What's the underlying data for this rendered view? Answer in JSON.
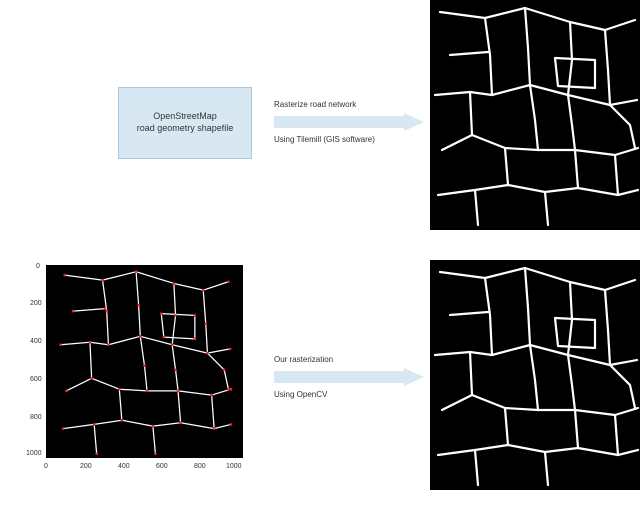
{
  "row1": {
    "box": {
      "line1": "OpenStreetMap",
      "line2": "road geometry shapefile"
    },
    "arrow": {
      "top_label": "Rasterize road network",
      "bottom_label": "Using Tilemill (GIS software)"
    },
    "arrow_color": "#d8e8f3",
    "road_stroke": "#ffffff",
    "road_stroke_width": 2.2,
    "road_bg": "#000000"
  },
  "row2": {
    "arrow": {
      "top_label": "Our rasterization",
      "bottom_label": "Using OpenCV"
    },
    "arrow_color": "#d8e8f3",
    "road_stroke": "#ffffff",
    "road_stroke_width": 2.2,
    "road_bg": "#000000",
    "plot": {
      "x_ticks": [
        "0",
        "200",
        "400",
        "600",
        "800",
        "1000"
      ],
      "y_ticks": [
        "0",
        "200",
        "400",
        "600",
        "800",
        "1000"
      ],
      "line_color": "#ffffff",
      "line_width": 1.5,
      "point_color": "#ff2020",
      "point_radius": 1.6,
      "bg": "#000000"
    }
  },
  "roads": {
    "paths": [
      "M10,12 L55,18 L95,8 L140,22 L175,30 L205,20",
      "M55,18 L60,55 L62,95",
      "M95,8 L98,48 L100,85",
      "M140,22 L142,60 L138,95",
      "M175,30 L178,70 L180,105",
      "M5,95 L40,92 L62,95 L100,85 L138,95 L180,105 L207,100",
      "M40,92 L42,135",
      "M100,85 L105,120 L108,150",
      "M138,95 L142,125 L145,150",
      "M12,150 L42,135 L75,148 L108,150 L145,150 L185,155 L208,148",
      "M75,148 L78,185",
      "M145,150 L148,188",
      "M185,155 L188,195",
      "M8,195 L45,190 L78,185 L115,192 L148,188 L188,195 L208,190",
      "M45,190 L48,225",
      "M115,192 L118,225",
      "M180,105 L200,125 L205,148",
      "M125,58 L165,60 L165,88 L128,86 Z",
      "M20,55 L58,52"
    ],
    "points": [
      [
        10,
        12
      ],
      [
        55,
        18
      ],
      [
        95,
        8
      ],
      [
        140,
        22
      ],
      [
        175,
        30
      ],
      [
        205,
        20
      ],
      [
        60,
        55
      ],
      [
        62,
        95
      ],
      [
        98,
        48
      ],
      [
        100,
        85
      ],
      [
        142,
        60
      ],
      [
        138,
        95
      ],
      [
        178,
        70
      ],
      [
        180,
        105
      ],
      [
        5,
        95
      ],
      [
        40,
        92
      ],
      [
        207,
        100
      ],
      [
        42,
        135
      ],
      [
        105,
        120
      ],
      [
        108,
        150
      ],
      [
        142,
        125
      ],
      [
        145,
        150
      ],
      [
        12,
        150
      ],
      [
        75,
        148
      ],
      [
        185,
        155
      ],
      [
        208,
        148
      ],
      [
        78,
        185
      ],
      [
        148,
        188
      ],
      [
        188,
        195
      ],
      [
        8,
        195
      ],
      [
        45,
        190
      ],
      [
        115,
        192
      ],
      [
        208,
        190
      ],
      [
        48,
        225
      ],
      [
        118,
        225
      ],
      [
        200,
        125
      ],
      [
        205,
        148
      ],
      [
        125,
        58
      ],
      [
        165,
        60
      ],
      [
        165,
        88
      ],
      [
        128,
        86
      ],
      [
        20,
        55
      ],
      [
        58,
        52
      ]
    ]
  }
}
